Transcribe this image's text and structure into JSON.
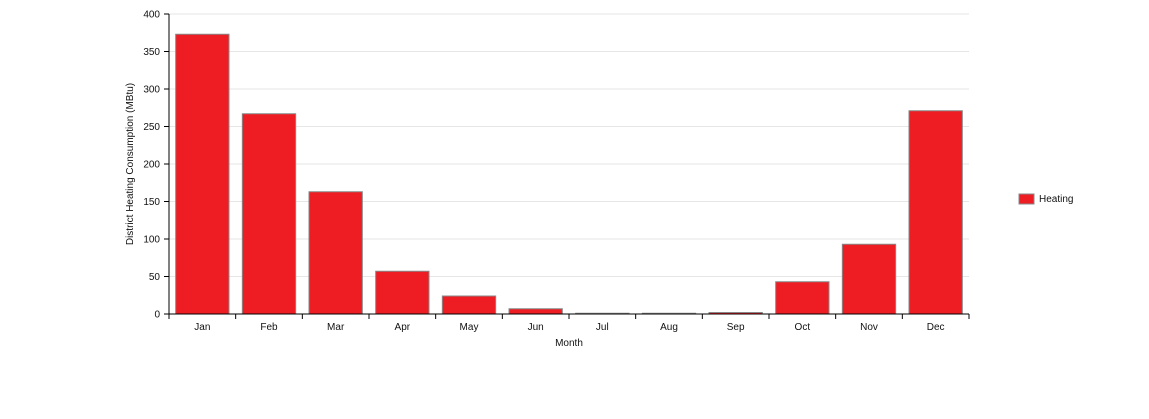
{
  "chart_data": {
    "type": "bar",
    "categories": [
      "Jan",
      "Feb",
      "Mar",
      "Apr",
      "May",
      "Jun",
      "Jul",
      "Aug",
      "Sep",
      "Oct",
      "Nov",
      "Dec"
    ],
    "series": [
      {
        "name": "Heating",
        "values": [
          373,
          267,
          163,
          57,
          24,
          7,
          1,
          1,
          2,
          43,
          93,
          271
        ]
      }
    ],
    "xlabel": "Month",
    "ylabel": "District Heating Consumption (MBtu)",
    "ylim": [
      0,
      400
    ],
    "yticks": [
      "0",
      "50",
      "100",
      "150",
      "200",
      "250",
      "300",
      "350",
      "400"
    ],
    "grid": true,
    "legend_position": "right",
    "colors": {
      "bar_fill": "#ee1d24",
      "bar_stroke": "#888888",
      "grid": "#e6e6e6",
      "axis": "#000000"
    }
  }
}
